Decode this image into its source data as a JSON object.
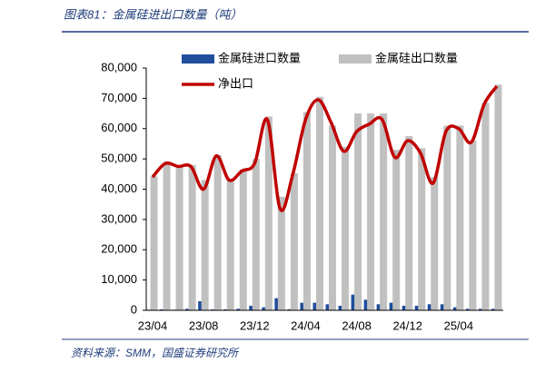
{
  "header": {
    "title": "图表81：金属硅进出口数量（吨）"
  },
  "chart_data": {
    "type": "bar-line",
    "categories": [
      "23/04",
      null,
      null,
      null,
      "23/08",
      null,
      null,
      null,
      "23/12",
      null,
      null,
      null,
      "24/04",
      null,
      null,
      null,
      "24/08",
      null,
      null,
      null,
      "24/12",
      null,
      null,
      null,
      "25/04",
      null,
      null,
      null
    ],
    "series": [
      {
        "name": "金属硅进口数量",
        "color": "#1f4e9c",
        "kind": "bar",
        "values": [
          200,
          300,
          200,
          500,
          3000,
          300,
          300,
          500,
          1500,
          1000,
          4000,
          300,
          2500,
          2500,
          2000,
          1500,
          5200,
          3500,
          2000,
          2500,
          1500,
          1500,
          2000,
          2000,
          1000,
          500,
          500,
          500
        ]
      },
      {
        "name": "金属硅出口数量",
        "color": "#c0c0c0",
        "kind": "bar",
        "values": [
          44200,
          48800,
          47700,
          48000,
          43000,
          51300,
          43300,
          46500,
          50000,
          64000,
          37500,
          45300,
          65500,
          70500,
          61000,
          54000,
          65000,
          65000,
          65000,
          53000,
          57500,
          53500,
          44000,
          61000,
          61000,
          56000,
          68500,
          74500
        ]
      },
      {
        "name": "净出口",
        "color": "#c00000",
        "kind": "line",
        "values": [
          44000,
          48500,
          47500,
          47500,
          40000,
          51000,
          43000,
          46000,
          48500,
          63000,
          33500,
          45000,
          63000,
          69500,
          62000,
          52500,
          59000,
          61500,
          63000,
          50500,
          56000,
          52000,
          42000,
          59000,
          60000,
          55500,
          68000,
          74000
        ]
      }
    ],
    "ylim": [
      0,
      80000
    ],
    "yticks": [
      0,
      {
        "value": 10000,
        "label": "10,000"
      },
      {
        "value": 20000,
        "label": "20,000"
      },
      {
        "value": 30000,
        "label": "30,000"
      },
      {
        "value": 40000,
        "label": "40,000"
      },
      {
        "value": 50000,
        "label": "50,000"
      },
      {
        "value": 60000,
        "label": "60,000"
      },
      {
        "value": 70000,
        "label": "70,000"
      },
      {
        "value": 80000,
        "label": "80,000"
      }
    ]
  },
  "footer": {
    "source": "资料来源：SMM，国盛证券研究所"
  }
}
